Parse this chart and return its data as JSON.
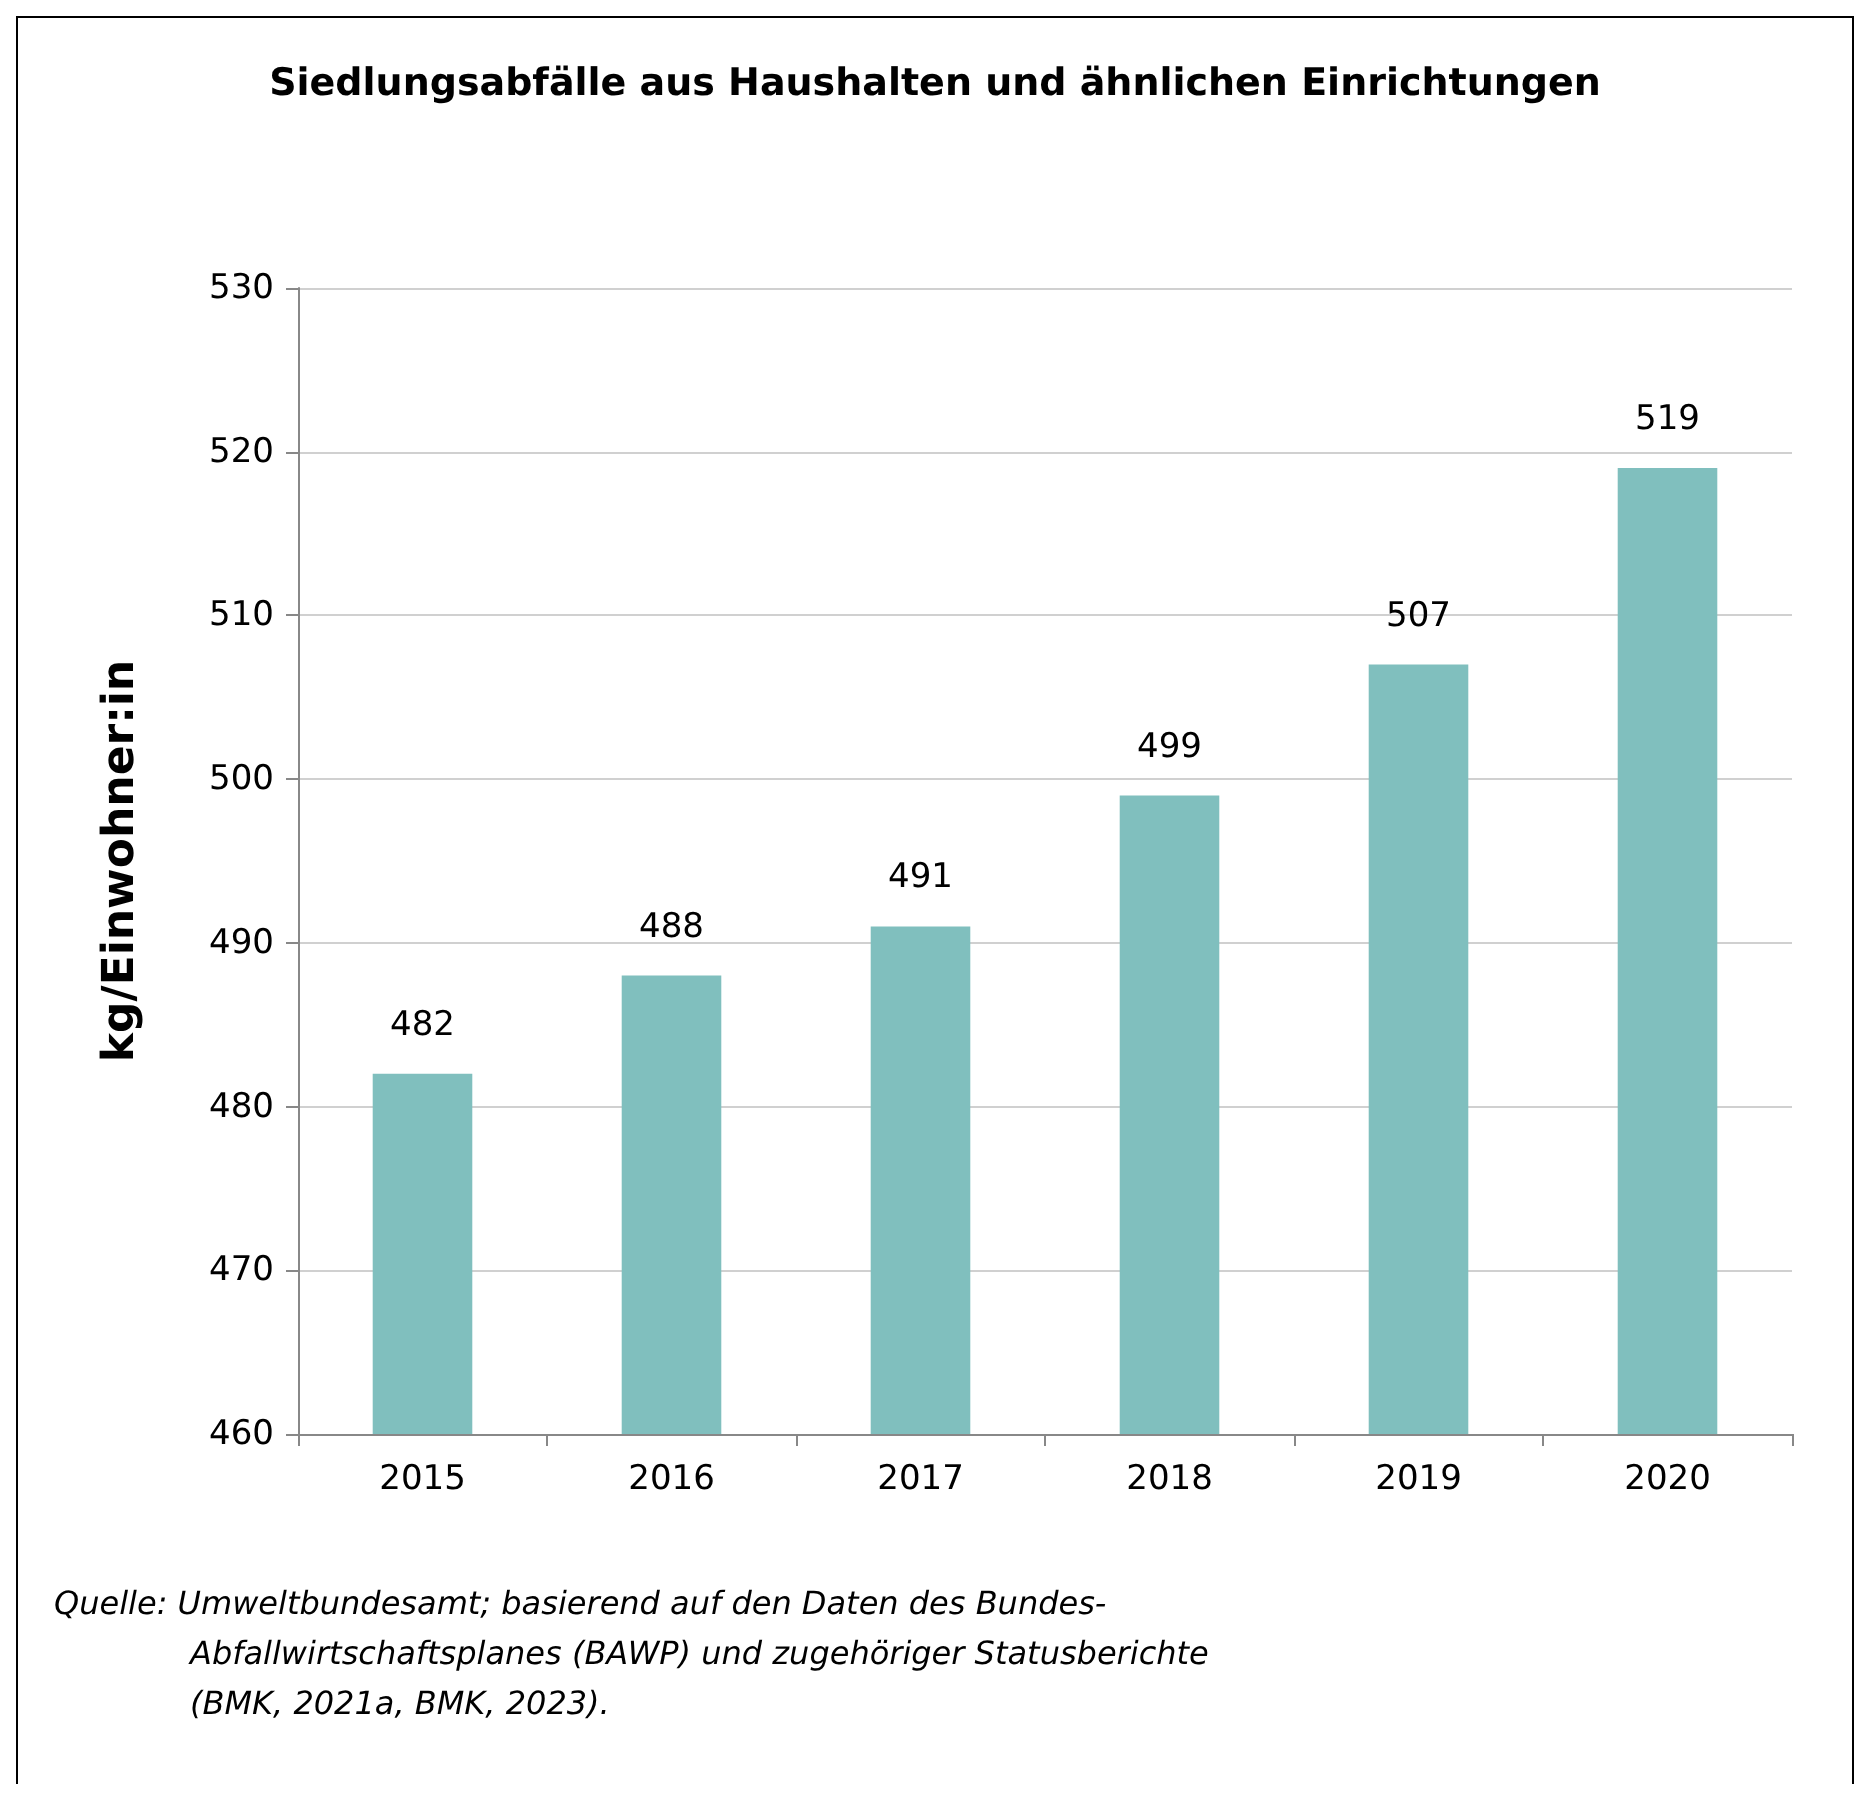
{
  "chart_data": {
    "type": "bar",
    "title": "Siedlungsabfälle aus Haushalten und ähnlichen Einrichtungen",
    "ylabel": "kg/Einwohner:in",
    "categories": [
      "2015",
      "2016",
      "2017",
      "2018",
      "2019",
      "2020"
    ],
    "values": [
      482,
      488,
      491,
      499,
      507,
      519
    ],
    "color": "#80bfbe",
    "ylim": [
      460,
      530
    ],
    "yticks": [
      460,
      470,
      480,
      490,
      500,
      510,
      520,
      530
    ],
    "grid": "y",
    "data_labels": true,
    "annotations": [
      "Quelle: Umweltbundesamt; basierend auf den Daten des Bundes-Abfallwirtschaftsplanes (BAWP) und zugehöriger Statusberichte (BMK, 2021a, BMK, 2023)."
    ]
  }
}
